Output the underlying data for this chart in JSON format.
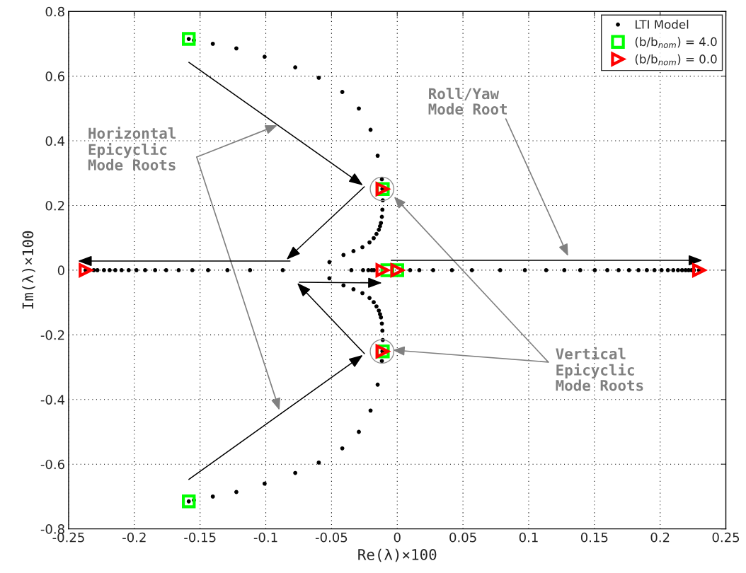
{
  "chart_data": {
    "type": "scatter",
    "xlabel": "Re(λ)×100",
    "ylabel": "Im(λ)×100",
    "xlim": [
      -0.25,
      0.25
    ],
    "xticks": [
      -0.25,
      -0.2,
      -0.15,
      -0.1,
      -0.05,
      0,
      0.05,
      0.1,
      0.15,
      0.2,
      0.25
    ],
    "ylim": [
      -0.8,
      0.8
    ],
    "yticks": [
      -0.8,
      -0.6,
      -0.4,
      -0.2,
      0,
      0.2,
      0.4,
      0.6,
      0.8
    ],
    "grid": true,
    "legend": "top right",
    "annotations": [
      "Horizontal\nEpicyclic\nMode Roots",
      "Roll/Yaw\nMode Root",
      "Vertical\nEpicyclic\nMode Roots"
    ],
    "series": [
      {
        "name": "LTI Model",
        "color": "#000000",
        "marker": "circle",
        "x": [
          -0.2371,
          -0.2309,
          -0.2281,
          -0.2231,
          -0.2188,
          -0.2145,
          -0.2097,
          -0.2043,
          -0.1984,
          -0.1918,
          -0.1842,
          -0.1758,
          -0.1663,
          -0.1559,
          -0.1439,
          -0.1292,
          -0.112,
          -0.0871,
          -0.0349,
          -0.026,
          -0.022,
          -0.0194,
          -0.0177,
          0.0098,
          0.0168,
          0.0273,
          0.0416,
          0.0568,
          0.0783,
          0.0971,
          0.1133,
          0.1271,
          0.1392,
          0.1503,
          0.1598,
          0.1684,
          0.1763,
          0.1835,
          0.1899,
          0.1957,
          0.2011,
          0.2059,
          0.21,
          0.2136,
          0.2167,
          0.2194,
          0.2217,
          0.2239,
          0.2257,
          0.2296,
          -0.0516,
          -0.0409,
          -0.0333,
          -0.0265,
          -0.0211,
          -0.0179,
          -0.0158,
          -0.014,
          -0.0131,
          -0.0124,
          -0.0117,
          -0.0113,
          -0.011,
          -0.0113,
          -0.0117,
          -0.0149,
          -0.0203,
          -0.0292,
          -0.0418,
          -0.0597,
          -0.0776,
          -0.1009,
          -0.1224,
          -0.1403,
          -0.1547,
          -0.1586,
          -0.0516,
          -0.0409,
          -0.0333,
          -0.0265,
          -0.0211,
          -0.0179,
          -0.0158,
          -0.014,
          -0.0131,
          -0.0124,
          -0.0117,
          -0.0113,
          -0.011,
          -0.0113,
          -0.0117,
          -0.0149,
          -0.0203,
          -0.0292,
          -0.0418,
          -0.0597,
          -0.0776,
          -0.1009,
          -0.1224,
          -0.1403,
          -0.1547,
          -0.1586
        ],
        "values": [
          0,
          0,
          0,
          0,
          0,
          0,
          0,
          0,
          0,
          0,
          0,
          0,
          0,
          0,
          0,
          0,
          0,
          0,
          0,
          0,
          0,
          0,
          0,
          0,
          0,
          0,
          0,
          0,
          0,
          0,
          0,
          0,
          0,
          0,
          0,
          0,
          0,
          0,
          0,
          0,
          0,
          0,
          0,
          0,
          0,
          0,
          0,
          0,
          0,
          0,
          0.025,
          0.047,
          0.059,
          0.071,
          0.086,
          0.099,
          0.112,
          0.125,
          0.136,
          0.146,
          0.165,
          0.187,
          0.216,
          0.251,
          0.281,
          0.354,
          0.434,
          0.5,
          0.551,
          0.595,
          0.627,
          0.66,
          0.686,
          0.7,
          0.711,
          0.715,
          -0.025,
          -0.047,
          -0.059,
          -0.071,
          -0.086,
          -0.099,
          -0.112,
          -0.125,
          -0.136,
          -0.146,
          -0.165,
          -0.187,
          -0.216,
          -0.251,
          -0.281,
          -0.354,
          -0.434,
          -0.5,
          -0.551,
          -0.595,
          -0.627,
          -0.66,
          -0.686,
          -0.7,
          -0.711,
          -0.715
        ]
      },
      {
        "name": "(b/b$_{nom}$) = 4.0",
        "color": "#00ff00",
        "marker": "square",
        "x": [
          -0.1586,
          -0.1586,
          -0.011,
          -0.011,
          -0.0075,
          0
        ],
        "values": [
          0.715,
          -0.715,
          0.251,
          -0.251,
          0,
          0
        ]
      },
      {
        "name": "(b/b$_{nom}$) = 0.0",
        "color": "#ff0000",
        "marker": "triangle",
        "x": [
          -0.2371,
          0.2296,
          -0.0113,
          -0.0113,
          -0.0113,
          0
        ],
        "values": [
          0,
          0,
          0.251,
          -0.251,
          0,
          0
        ]
      }
    ]
  }
}
